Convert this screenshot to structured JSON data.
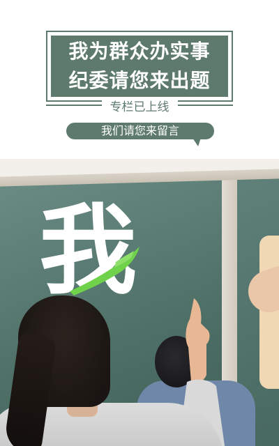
{
  "header": {
    "title_line1": "我为群众办实事",
    "title_line2": "纪委请您来出题",
    "subtitle": "专栏已上线",
    "bubble_text": "我们请您来留言"
  },
  "banner": {
    "glyph": "我"
  },
  "colors": {
    "brand_green": "#5e7a6d",
    "accent_green": "#6fd24a",
    "chalkboard": "#4f7168"
  }
}
